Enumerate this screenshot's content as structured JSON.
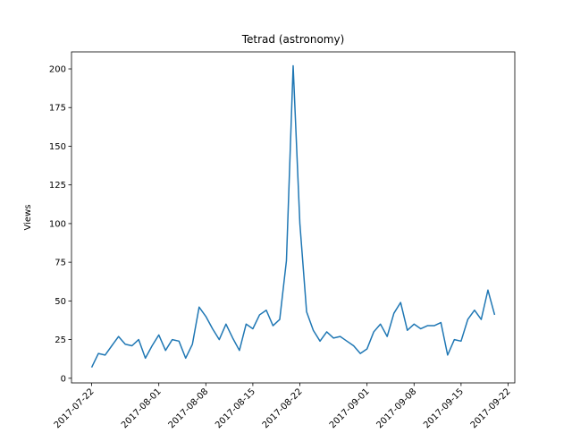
{
  "chart_data": {
    "type": "line",
    "title": "Tetrad (astronomy)",
    "ylabel": "Views",
    "color": "#1f77b4",
    "x": [
      "2017-07-22",
      "2017-07-23",
      "2017-07-24",
      "2017-07-25",
      "2017-07-26",
      "2017-07-27",
      "2017-07-28",
      "2017-07-29",
      "2017-07-30",
      "2017-07-31",
      "2017-08-01",
      "2017-08-02",
      "2017-08-03",
      "2017-08-04",
      "2017-08-05",
      "2017-08-06",
      "2017-08-07",
      "2017-08-08",
      "2017-08-09",
      "2017-08-10",
      "2017-08-11",
      "2017-08-12",
      "2017-08-13",
      "2017-08-14",
      "2017-08-15",
      "2017-08-16",
      "2017-08-17",
      "2017-08-18",
      "2017-08-19",
      "2017-08-20",
      "2017-08-21",
      "2017-08-22",
      "2017-08-23",
      "2017-08-24",
      "2017-08-25",
      "2017-08-26",
      "2017-08-27",
      "2017-08-28",
      "2017-08-29",
      "2017-08-30",
      "2017-08-31",
      "2017-09-01",
      "2017-09-02",
      "2017-09-03",
      "2017-09-04",
      "2017-09-05",
      "2017-09-06",
      "2017-09-07",
      "2017-09-08",
      "2017-09-09",
      "2017-09-10",
      "2017-09-11",
      "2017-09-12",
      "2017-09-13",
      "2017-09-14",
      "2017-09-15",
      "2017-09-16",
      "2017-09-17",
      "2017-09-18",
      "2017-09-19",
      "2017-09-20"
    ],
    "values": [
      7,
      16,
      15,
      21,
      27,
      22,
      21,
      25,
      13,
      21,
      28,
      18,
      25,
      24,
      13,
      22,
      46,
      40,
      32,
      25,
      35,
      26,
      18,
      35,
      32,
      41,
      44,
      34,
      38,
      76,
      202,
      100,
      43,
      31,
      24,
      30,
      26,
      27,
      24,
      21,
      16,
      19,
      30,
      35,
      27,
      42,
      49,
      31,
      35,
      32,
      34,
      34,
      36,
      15,
      25,
      24,
      38,
      44,
      38,
      57,
      41
    ],
    "xlim": [
      "2017-07-19",
      "2017-09-23"
    ],
    "xticks": [
      "2017-07-22",
      "2017-08-01",
      "2017-08-08",
      "2017-08-15",
      "2017-08-22",
      "2017-09-01",
      "2017-09-08",
      "2017-09-15",
      "2017-09-22"
    ],
    "ylim": [
      -3,
      211
    ],
    "yticks": [
      0,
      25,
      50,
      75,
      100,
      125,
      150,
      175,
      200
    ]
  }
}
